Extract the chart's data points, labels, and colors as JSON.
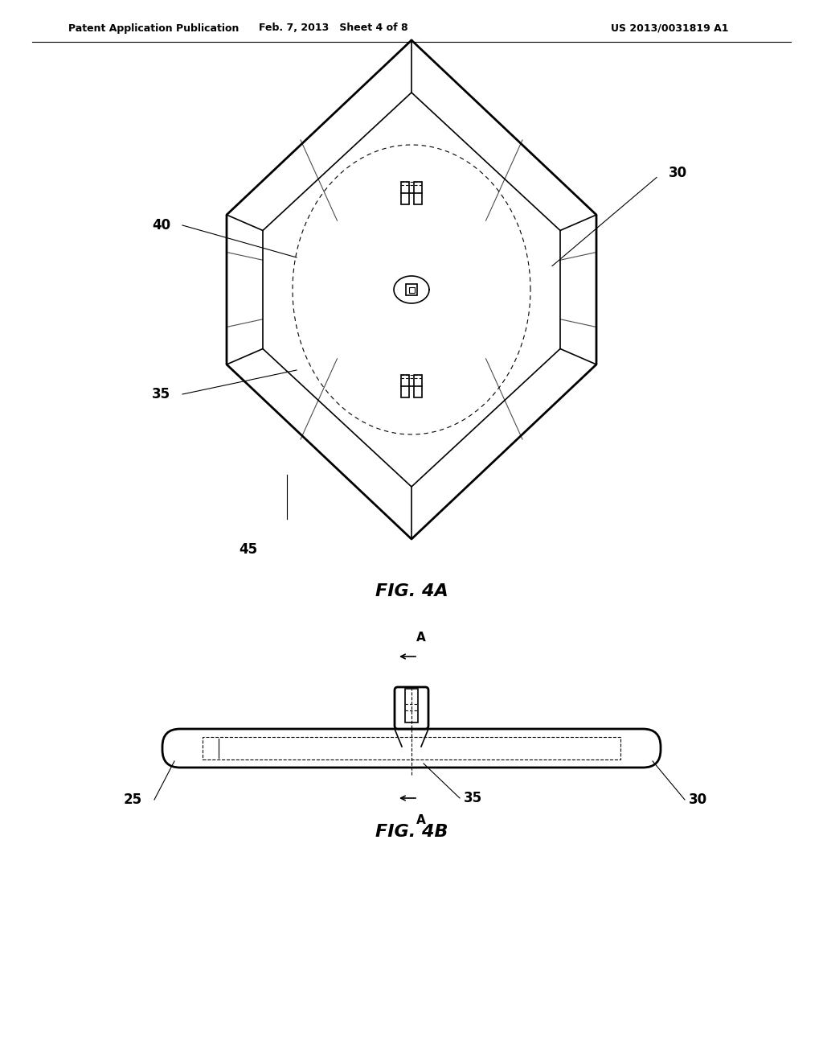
{
  "bg_color": "#ffffff",
  "line_color": "#000000",
  "header_left": "Patent Application Publication",
  "header_mid": "Feb. 7, 2013   Sheet 4 of 8",
  "header_right": "US 2013/0031819 A1",
  "fig4a_label": "FIG. 4A",
  "fig4b_label": "FIG. 4B",
  "label_30_4a": "30",
  "label_40": "40",
  "label_35_4a": "35",
  "label_45": "45",
  "label_25": "25",
  "label_30_4b": "30",
  "label_35_4b": "35",
  "label_A_top": "A",
  "label_A_bot": "A"
}
